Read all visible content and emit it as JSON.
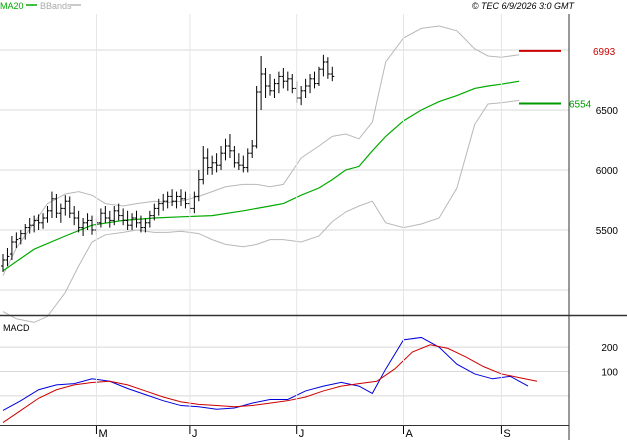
{
  "header": {
    "legend": [
      "MA20",
      "BBands"
    ],
    "copyright": "© TEC 6/9/2026 3:0 GMT"
  },
  "colors": {
    "price": "#000000",
    "ma20": "#00aa00",
    "bbands": "#b8b8b8",
    "macd": "#0000dd",
    "signal": "#cc0000",
    "resistance": "#cc0000",
    "support": "#009900",
    "grid": "#d8d8d8",
    "frame": "#333333"
  },
  "chart_data": [
    {
      "type": "ohlc",
      "title": "",
      "grid": true,
      "x_months": [
        "M",
        "J",
        "J",
        "A",
        "S"
      ],
      "y_ticks": [
        "6500",
        "6000",
        "5500"
      ],
      "y_range": [
        4800,
        7300
      ],
      "levels": [
        {
          "name": "resistance",
          "value": 6993,
          "label": "6993"
        },
        {
          "name": "support",
          "value": 6554,
          "label": "6554"
        }
      ],
      "ohlc": [
        [
          5200,
          5300,
          5150,
          5250
        ],
        [
          5250,
          5350,
          5200,
          5280
        ],
        [
          5300,
          5450,
          5250,
          5400
        ],
        [
          5400,
          5480,
          5350,
          5420
        ],
        [
          5430,
          5500,
          5380,
          5470
        ],
        [
          5470,
          5550,
          5420,
          5520
        ],
        [
          5520,
          5600,
          5470,
          5540
        ],
        [
          5540,
          5620,
          5480,
          5580
        ],
        [
          5580,
          5630,
          5500,
          5560
        ],
        [
          5560,
          5640,
          5510,
          5600
        ],
        [
          5600,
          5700,
          5560,
          5660
        ],
        [
          5660,
          5820,
          5600,
          5760
        ],
        [
          5760,
          5800,
          5600,
          5640
        ],
        [
          5640,
          5720,
          5560,
          5680
        ],
        [
          5680,
          5790,
          5620,
          5740
        ],
        [
          5740,
          5780,
          5600,
          5640
        ],
        [
          5640,
          5700,
          5540,
          5600
        ],
        [
          5600,
          5660,
          5480,
          5520
        ],
        [
          5520,
          5600,
          5450,
          5560
        ],
        [
          5560,
          5640,
          5500,
          5580
        ],
        [
          5580,
          5620,
          5460,
          5500
        ],
        [
          5500,
          5600,
          5460,
          5560
        ],
        [
          5560,
          5680,
          5520,
          5640
        ],
        [
          5640,
          5700,
          5560,
          5600
        ],
        [
          5600,
          5660,
          5520,
          5580
        ],
        [
          5580,
          5700,
          5540,
          5660
        ],
        [
          5660,
          5720,
          5580,
          5620
        ],
        [
          5620,
          5680,
          5540,
          5580
        ],
        [
          5580,
          5660,
          5500,
          5540
        ],
        [
          5540,
          5640,
          5500,
          5600
        ],
        [
          5600,
          5660,
          5520,
          5560
        ],
        [
          5560,
          5620,
          5480,
          5520
        ],
        [
          5520,
          5600,
          5480,
          5560
        ],
        [
          5560,
          5660,
          5520,
          5620
        ],
        [
          5620,
          5720,
          5580,
          5680
        ],
        [
          5680,
          5760,
          5620,
          5720
        ],
        [
          5720,
          5800,
          5660,
          5740
        ],
        [
          5740,
          5820,
          5680,
          5780
        ],
        [
          5780,
          5840,
          5700,
          5740
        ],
        [
          5740,
          5820,
          5680,
          5780
        ],
        [
          5780,
          5840,
          5700,
          5760
        ],
        [
          5760,
          5820,
          5680,
          5720
        ],
        [
          5720,
          5800,
          5640,
          5680
        ],
        [
          5680,
          5820,
          5640,
          5780
        ],
        [
          5780,
          6000,
          5740,
          5920
        ],
        [
          5920,
          6200,
          5880,
          6100
        ],
        [
          6100,
          6180,
          5960,
          6020
        ],
        [
          6020,
          6120,
          5960,
          6060
        ],
        [
          6060,
          6140,
          5980,
          6040
        ],
        [
          6040,
          6200,
          6000,
          6140
        ],
        [
          6140,
          6260,
          6080,
          6200
        ],
        [
          6200,
          6300,
          6100,
          6160
        ],
        [
          6160,
          6200,
          6020,
          6060
        ],
        [
          6060,
          6140,
          6000,
          6040
        ],
        [
          6040,
          6120,
          5980,
          6020
        ],
        [
          6020,
          6180,
          5980,
          6140
        ],
        [
          6140,
          6250,
          6100,
          6200
        ],
        [
          6200,
          6700,
          6180,
          6650
        ],
        [
          6650,
          6950,
          6500,
          6800
        ],
        [
          6800,
          6850,
          6600,
          6700
        ],
        [
          6700,
          6800,
          6620,
          6660
        ],
        [
          6660,
          6760,
          6600,
          6720
        ],
        [
          6720,
          6820,
          6640,
          6780
        ],
        [
          6780,
          6850,
          6680,
          6740
        ],
        [
          6740,
          6820,
          6660,
          6760
        ],
        [
          6760,
          6800,
          6640,
          6680
        ],
        [
          6680,
          6740,
          6560,
          6600
        ],
        [
          6600,
          6700,
          6540,
          6660
        ],
        [
          6660,
          6760,
          6600,
          6700
        ],
        [
          6700,
          6800,
          6640,
          6760
        ],
        [
          6760,
          6820,
          6680,
          6720
        ],
        [
          6720,
          6860,
          6700,
          6840
        ],
        [
          6840,
          6960,
          6780,
          6900
        ],
        [
          6900,
          6940,
          6760,
          6800
        ],
        [
          6800,
          6860,
          6740,
          6780
        ]
      ],
      "ma20": [
        [
          0,
          5160
        ],
        [
          7,
          5340
        ],
        [
          14,
          5450
        ],
        [
          20,
          5540
        ],
        [
          27,
          5580
        ],
        [
          34,
          5600
        ],
        [
          40,
          5610
        ],
        [
          47,
          5620
        ],
        [
          54,
          5660
        ],
        [
          60,
          5700
        ],
        [
          63,
          5720
        ],
        [
          67,
          5790
        ],
        [
          71,
          5850
        ],
        [
          74,
          5920
        ],
        [
          77,
          6000
        ],
        [
          80,
          6030
        ],
        [
          83,
          6160
        ],
        [
          86,
          6280
        ],
        [
          90,
          6410
        ],
        [
          94,
          6500
        ],
        [
          98,
          6570
        ],
        [
          102,
          6620
        ],
        [
          106,
          6680
        ],
        [
          109,
          6700
        ],
        [
          112,
          6715
        ],
        [
          116,
          6740
        ]
      ],
      "bb_upper": [
        [
          0,
          5120
        ],
        [
          3,
          5350
        ],
        [
          7,
          5560
        ],
        [
          10,
          5720
        ],
        [
          14,
          5800
        ],
        [
          17,
          5820
        ],
        [
          20,
          5790
        ],
        [
          23,
          5720
        ],
        [
          27,
          5700
        ],
        [
          30,
          5720
        ],
        [
          34,
          5740
        ],
        [
          37,
          5730
        ],
        [
          40,
          5740
        ],
        [
          44,
          5780
        ],
        [
          47,
          5820
        ],
        [
          50,
          5860
        ],
        [
          54,
          5880
        ],
        [
          57,
          5880
        ],
        [
          60,
          5860
        ],
        [
          63,
          5880
        ],
        [
          67,
          6100
        ],
        [
          71,
          6200
        ],
        [
          74,
          6280
        ],
        [
          77,
          6300
        ],
        [
          80,
          6260
        ],
        [
          83,
          6400
        ],
        [
          86,
          6900
        ],
        [
          90,
          7100
        ],
        [
          94,
          7180
        ],
        [
          98,
          7200
        ],
        [
          102,
          7160
        ],
        [
          106,
          7010
        ],
        [
          109,
          6950
        ],
        [
          112,
          6940
        ],
        [
          116,
          6960
        ]
      ],
      "bb_lower": [
        [
          0,
          4820
        ],
        [
          3,
          4760
        ],
        [
          7,
          4730
        ],
        [
          10,
          4780
        ],
        [
          14,
          4980
        ],
        [
          17,
          5200
        ],
        [
          20,
          5400
        ],
        [
          23,
          5460
        ],
        [
          27,
          5480
        ],
        [
          30,
          5500
        ],
        [
          34,
          5480
        ],
        [
          37,
          5480
        ],
        [
          40,
          5490
        ],
        [
          44,
          5470
        ],
        [
          47,
          5420
        ],
        [
          50,
          5380
        ],
        [
          54,
          5360
        ],
        [
          57,
          5380
        ],
        [
          60,
          5420
        ],
        [
          63,
          5420
        ],
        [
          67,
          5400
        ],
        [
          71,
          5450
        ],
        [
          74,
          5570
        ],
        [
          77,
          5650
        ],
        [
          80,
          5700
        ],
        [
          83,
          5740
        ],
        [
          86,
          5560
        ],
        [
          90,
          5520
        ],
        [
          94,
          5550
        ],
        [
          98,
          5600
        ],
        [
          102,
          5850
        ],
        [
          106,
          6380
        ],
        [
          109,
          6550
        ],
        [
          112,
          6560
        ],
        [
          116,
          6580
        ]
      ]
    },
    {
      "type": "line",
      "title": "MACD",
      "y_ticks": [
        "200",
        "100"
      ],
      "y_range": [
        -120,
        320
      ],
      "series": [
        {
          "name": "macd",
          "values": [
            [
              0,
              -60
            ],
            [
              4,
              -20
            ],
            [
              8,
              25
            ],
            [
              12,
              45
            ],
            [
              16,
              50
            ],
            [
              20,
              70
            ],
            [
              24,
              60
            ],
            [
              28,
              30
            ],
            [
              32,
              5
            ],
            [
              36,
              -20
            ],
            [
              40,
              -40
            ],
            [
              44,
              -45
            ],
            [
              48,
              -55
            ],
            [
              52,
              -50
            ],
            [
              56,
              -30
            ],
            [
              60,
              -15
            ],
            [
              64,
              -15
            ],
            [
              68,
              20
            ],
            [
              72,
              40
            ],
            [
              76,
              55
            ],
            [
              80,
              40
            ],
            [
              83,
              10
            ],
            [
              86,
              110
            ],
            [
              90,
              230
            ],
            [
              94,
              240
            ],
            [
              98,
              200
            ],
            [
              102,
              130
            ],
            [
              106,
              90
            ],
            [
              110,
              70
            ],
            [
              114,
              80
            ],
            [
              118,
              40
            ]
          ]
        },
        {
          "name": "signal",
          "values": [
            [
              0,
              -110
            ],
            [
              4,
              -60
            ],
            [
              8,
              -10
            ],
            [
              12,
              25
            ],
            [
              16,
              45
            ],
            [
              20,
              55
            ],
            [
              24,
              60
            ],
            [
              28,
              45
            ],
            [
              32,
              20
            ],
            [
              36,
              -5
            ],
            [
              40,
              -25
            ],
            [
              44,
              -35
            ],
            [
              48,
              -40
            ],
            [
              52,
              -45
            ],
            [
              56,
              -40
            ],
            [
              60,
              -30
            ],
            [
              64,
              -20
            ],
            [
              68,
              -5
            ],
            [
              72,
              20
            ],
            [
              76,
              40
            ],
            [
              80,
              50
            ],
            [
              84,
              60
            ],
            [
              88,
              110
            ],
            [
              92,
              180
            ],
            [
              96,
              210
            ],
            [
              100,
              195
            ],
            [
              104,
              160
            ],
            [
              108,
              120
            ],
            [
              112,
              90
            ],
            [
              116,
              75
            ],
            [
              120,
              60
            ]
          ]
        }
      ]
    }
  ]
}
